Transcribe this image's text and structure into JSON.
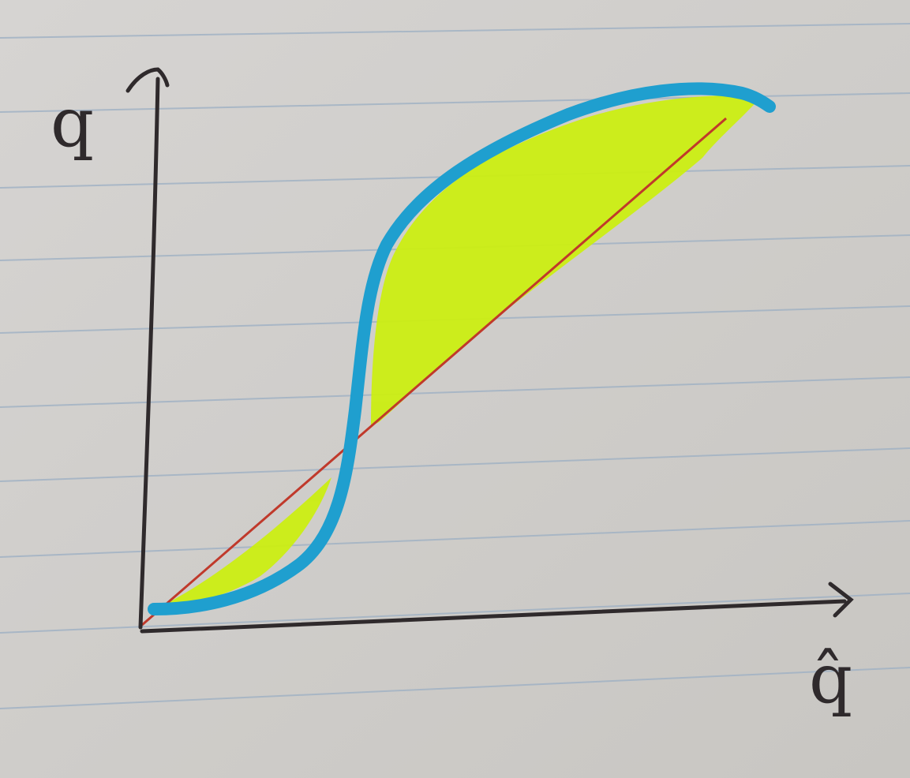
{
  "axes": {
    "y_label": "q",
    "x_label": "q̂"
  }
}
